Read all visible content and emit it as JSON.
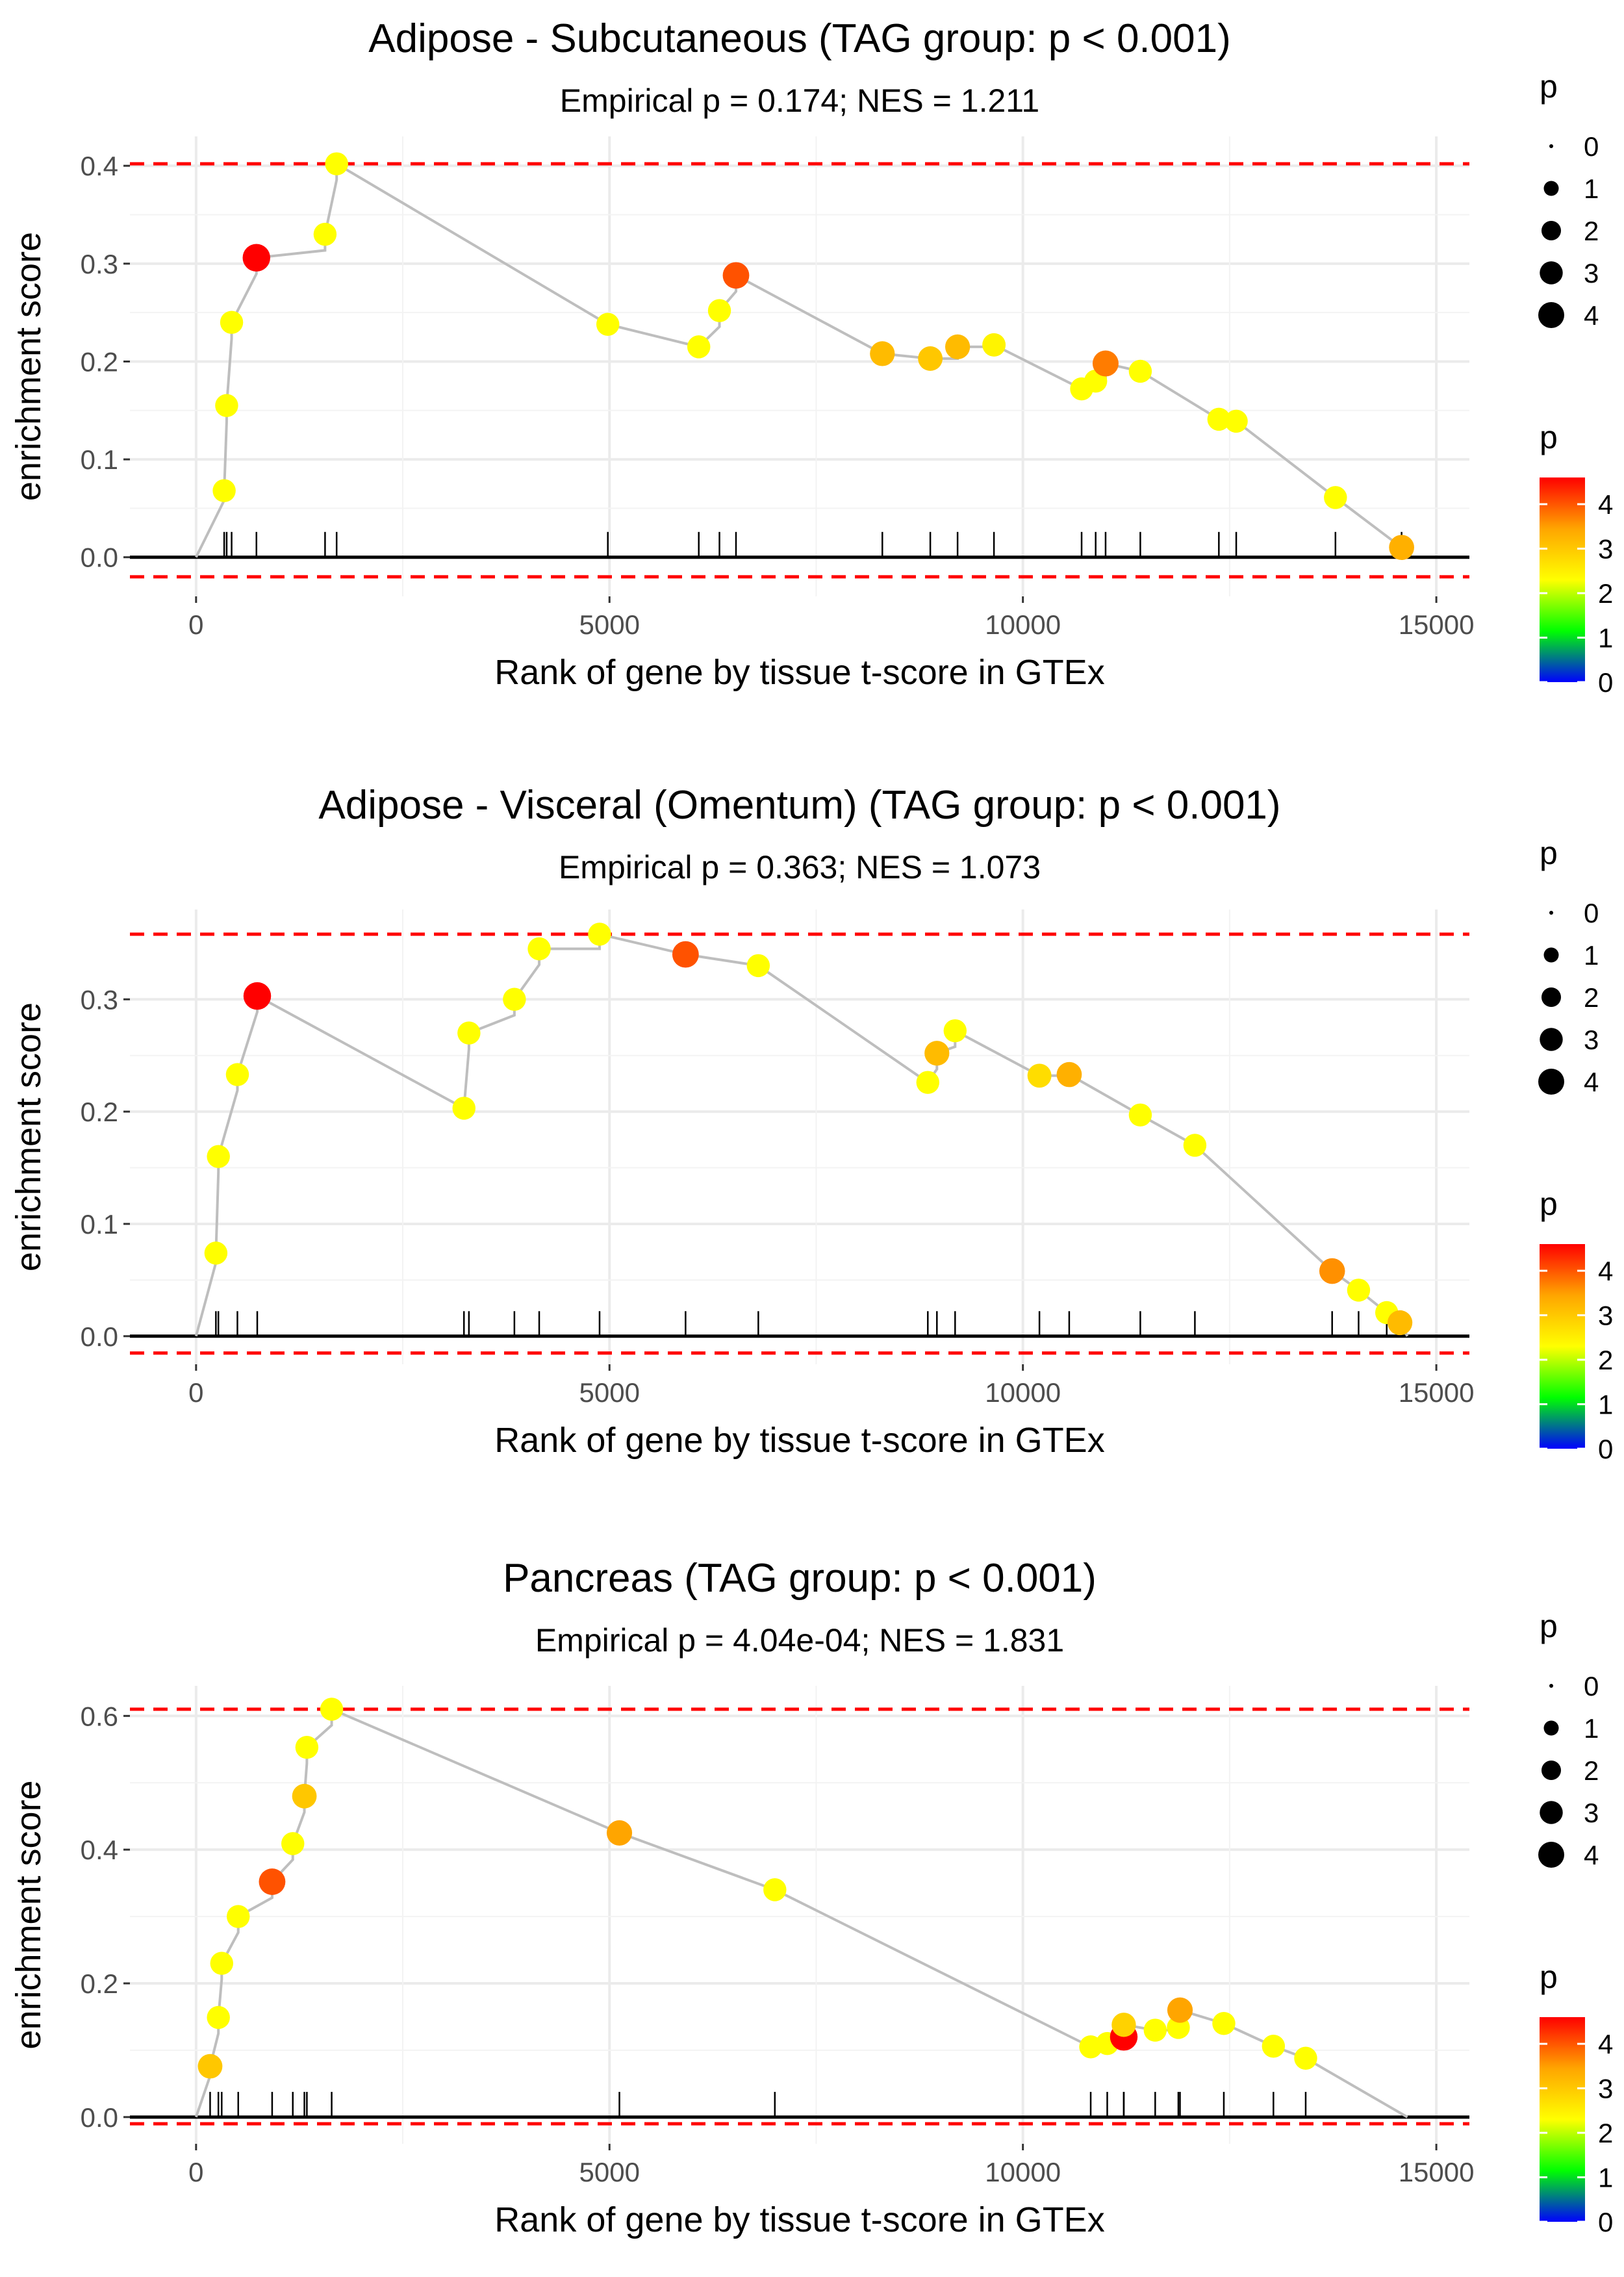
{
  "legend_size_title": "p",
  "legend_color_title": "p",
  "size_breaks": [
    "0",
    "1",
    "2",
    "3",
    "4"
  ],
  "color_breaks": [
    "4",
    "3",
    "2",
    "1",
    "0"
  ],
  "colors": {
    "background": "#FFFFFF",
    "grid": "#EBEBEB",
    "line": "#BEBEBE",
    "axis_zero": "#000000",
    "threshold": "#FF0000",
    "gradient": [
      "#0000FF",
      "#00FF00",
      "#FFFF00",
      "#FFA500",
      "#FF0000"
    ]
  },
  "chart_data": [
    {
      "type": "scatter",
      "title": "Adipose - Subcutaneous (TAG group: p < 0.001)",
      "subtitle": "Empirical p = 0.174; NES = 1.211",
      "xlabel": "Rank of gene by tissue t-score in GTEx",
      "ylabel": "enrichment score",
      "xlim": [
        -800,
        15400
      ],
      "ylim": [
        -0.04,
        0.43
      ],
      "xticks": [
        0,
        5000,
        10000,
        15000
      ],
      "xtick_labels": [
        "0",
        "5000",
        "10000",
        "15000"
      ],
      "yticks": [
        0,
        0.1,
        0.2,
        0.3,
        0.4
      ],
      "ytick_labels": [
        "0.0",
        "0.1",
        "0.2",
        "0.3",
        "0.4"
      ],
      "hlines": [
        0.402,
        -0.02
      ],
      "line_end": [
        14650,
        0
      ],
      "points": [
        {
          "x": 340,
          "y": 0.068,
          "p": 3.0
        },
        {
          "x": 370,
          "y": 0.155,
          "p": 3.0
        },
        {
          "x": 430,
          "y": 0.24,
          "p": 3.0
        },
        {
          "x": 730,
          "y": 0.306,
          "p": 4.6
        },
        {
          "x": 1560,
          "y": 0.33,
          "p": 3.0
        },
        {
          "x": 1700,
          "y": 0.402,
          "p": 3.0
        },
        {
          "x": 4980,
          "y": 0.238,
          "p": 3.0
        },
        {
          "x": 6080,
          "y": 0.215,
          "p": 3.0
        },
        {
          "x": 6330,
          "y": 0.252,
          "p": 3.0
        },
        {
          "x": 6530,
          "y": 0.288,
          "p": 4.2
        },
        {
          "x": 8300,
          "y": 0.208,
          "p": 3.6
        },
        {
          "x": 8880,
          "y": 0.203,
          "p": 3.5
        },
        {
          "x": 9210,
          "y": 0.215,
          "p": 3.6
        },
        {
          "x": 9650,
          "y": 0.217,
          "p": 3.1
        },
        {
          "x": 10710,
          "y": 0.172,
          "p": 3.0
        },
        {
          "x": 10880,
          "y": 0.18,
          "p": 3.0
        },
        {
          "x": 11000,
          "y": 0.198,
          "p": 4.0
        },
        {
          "x": 11420,
          "y": 0.19,
          "p": 3.0
        },
        {
          "x": 12370,
          "y": 0.141,
          "p": 3.0
        },
        {
          "x": 12580,
          "y": 0.139,
          "p": 3.0
        },
        {
          "x": 13780,
          "y": 0.061,
          "p": 3.0
        },
        {
          "x": 14580,
          "y": 0.01,
          "p": 3.7
        }
      ]
    },
    {
      "type": "scatter",
      "title": "Adipose - Visceral (Omentum) (TAG group: p < 0.001)",
      "subtitle": "Empirical p = 0.363; NES = 1.073",
      "xlabel": "Rank of gene by tissue t-score in GTEx",
      "ylabel": "enrichment score",
      "xlim": [
        -800,
        15400
      ],
      "ylim": [
        -0.025,
        0.38
      ],
      "xticks": [
        0,
        5000,
        10000,
        15000
      ],
      "xtick_labels": [
        "0",
        "5000",
        "10000",
        "15000"
      ],
      "yticks": [
        0,
        0.1,
        0.2,
        0.3
      ],
      "ytick_labels": [
        "0.0",
        "0.1",
        "0.2",
        "0.3"
      ],
      "hlines": [
        0.358,
        -0.015
      ],
      "line_end": [
        14650,
        0
      ],
      "points": [
        {
          "x": 240,
          "y": 0.074,
          "p": 3.0
        },
        {
          "x": 270,
          "y": 0.16,
          "p": 3.0
        },
        {
          "x": 500,
          "y": 0.233,
          "p": 3.0
        },
        {
          "x": 740,
          "y": 0.303,
          "p": 4.6
        },
        {
          "x": 3240,
          "y": 0.203,
          "p": 3.0
        },
        {
          "x": 3300,
          "y": 0.27,
          "p": 3.0
        },
        {
          "x": 3850,
          "y": 0.3,
          "p": 3.0
        },
        {
          "x": 4150,
          "y": 0.345,
          "p": 3.0
        },
        {
          "x": 4880,
          "y": 0.358,
          "p": 3.0
        },
        {
          "x": 5920,
          "y": 0.34,
          "p": 4.2
        },
        {
          "x": 6800,
          "y": 0.33,
          "p": 3.0
        },
        {
          "x": 8850,
          "y": 0.226,
          "p": 3.0
        },
        {
          "x": 8960,
          "y": 0.252,
          "p": 3.6
        },
        {
          "x": 9180,
          "y": 0.272,
          "p": 3.0
        },
        {
          "x": 10200,
          "y": 0.232,
          "p": 3.3
        },
        {
          "x": 10560,
          "y": 0.233,
          "p": 3.7
        },
        {
          "x": 11420,
          "y": 0.197,
          "p": 3.0
        },
        {
          "x": 12080,
          "y": 0.17,
          "p": 3.0
        },
        {
          "x": 13740,
          "y": 0.058,
          "p": 3.9
        },
        {
          "x": 14060,
          "y": 0.041,
          "p": 3.0
        },
        {
          "x": 14400,
          "y": 0.021,
          "p": 3.0
        },
        {
          "x": 14560,
          "y": 0.012,
          "p": 3.6
        }
      ]
    },
    {
      "type": "scatter",
      "title": "Pancreas (TAG group: p < 0.001)",
      "subtitle": "Empirical p = 4.04e-04; NES = 1.831",
      "xlabel": "Rank of gene by tissue t-score in GTEx",
      "ylabel": "enrichment score",
      "xlim": [
        -800,
        15400
      ],
      "ylim": [
        -0.04,
        0.645
      ],
      "xticks": [
        0,
        5000,
        10000,
        15000
      ],
      "xtick_labels": [
        "0",
        "5000",
        "10000",
        "15000"
      ],
      "yticks": [
        0,
        0.2,
        0.4,
        0.6
      ],
      "ytick_labels": [
        "0.0",
        "0.2",
        "0.4",
        "0.6"
      ],
      "hlines": [
        0.61,
        -0.01
      ],
      "line_end": [
        14650,
        0
      ],
      "points": [
        {
          "x": 170,
          "y": 0.076,
          "p": 3.5
        },
        {
          "x": 270,
          "y": 0.149,
          "p": 3.0
        },
        {
          "x": 310,
          "y": 0.23,
          "p": 3.0
        },
        {
          "x": 510,
          "y": 0.3,
          "p": 3.0
        },
        {
          "x": 920,
          "y": 0.352,
          "p": 4.2
        },
        {
          "x": 1170,
          "y": 0.409,
          "p": 3.0
        },
        {
          "x": 1310,
          "y": 0.48,
          "p": 3.5
        },
        {
          "x": 1340,
          "y": 0.553,
          "p": 3.0
        },
        {
          "x": 1640,
          "y": 0.61,
          "p": 3.0
        },
        {
          "x": 5120,
          "y": 0.425,
          "p": 3.8
        },
        {
          "x": 7000,
          "y": 0.34,
          "p": 3.0
        },
        {
          "x": 10820,
          "y": 0.105,
          "p": 3.0
        },
        {
          "x": 11020,
          "y": 0.11,
          "p": 3.0
        },
        {
          "x": 11220,
          "y": 0.12,
          "p": 4.6
        },
        {
          "x": 11220,
          "y": 0.138,
          "p": 3.4
        },
        {
          "x": 11600,
          "y": 0.13,
          "p": 3.0
        },
        {
          "x": 11880,
          "y": 0.134,
          "p": 3.0
        },
        {
          "x": 11900,
          "y": 0.16,
          "p": 3.8
        },
        {
          "x": 12430,
          "y": 0.14,
          "p": 3.0
        },
        {
          "x": 13030,
          "y": 0.106,
          "p": 3.0
        },
        {
          "x": 13420,
          "y": 0.088,
          "p": 3.0
        }
      ]
    }
  ]
}
